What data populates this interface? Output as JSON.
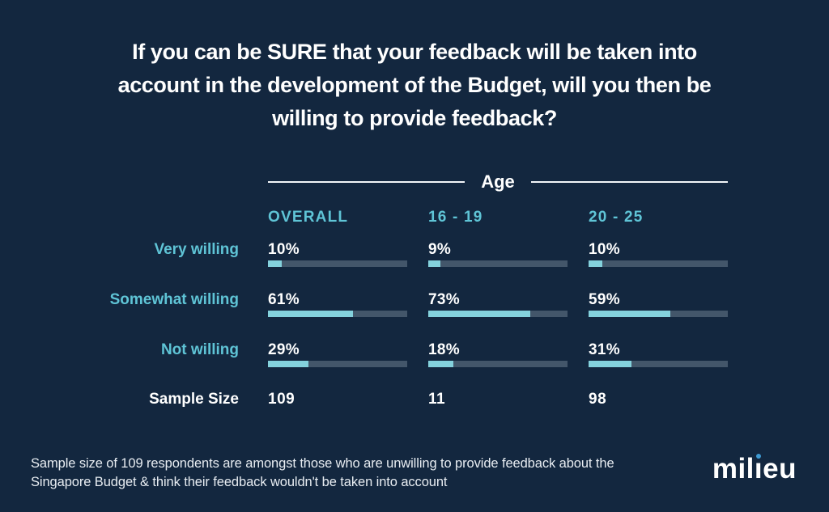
{
  "title": {
    "lines": [
      "If you can be SURE that your feedback will be taken into",
      "account in the development of the Budget, will you then be",
      "willing to provide feedback?"
    ]
  },
  "group_header": "Age",
  "columns": [
    "OVERALL",
    "16 - 19",
    "20 - 25"
  ],
  "rows": [
    {
      "label": "Very willing",
      "display": [
        "10%",
        "9%",
        "10%"
      ],
      "percents": [
        10,
        9,
        10
      ]
    },
    {
      "label": "Somewhat willing",
      "display": [
        "61%",
        "73%",
        "59%"
      ],
      "percents": [
        61,
        73,
        59
      ]
    },
    {
      "label": "Not willing",
      "display": [
        "29%",
        "18%",
        "31%"
      ],
      "percents": [
        29,
        18,
        31
      ]
    }
  ],
  "sample": {
    "label": "Sample Size",
    "values": [
      "109",
      "11",
      "98"
    ]
  },
  "footnote": "Sample size of 109 respondents are amongst those who are unwilling to provide feedback about the Singapore Budget & think their feedback wouldn't be taken into account",
  "logo": {
    "pre": "mil",
    "dotless_i": "ı",
    "post": "eu"
  },
  "colors": {
    "background": "#13273F",
    "accent_teal": "#5FC4D6",
    "bar_fill": "#84D2DD",
    "bar_track": "#43566A",
    "text_white": "#FFFFFF",
    "logo_dot_blue": "#3E9AD2"
  },
  "chart_data": {
    "type": "bar",
    "title": "If you can be SURE that your feedback will be taken into account in the development of the Budget, will you then be willing to provide feedback?",
    "group_label": "Age",
    "categories": [
      "Very willing",
      "Somewhat willing",
      "Not willing"
    ],
    "series": [
      {
        "name": "OVERALL",
        "values": [
          10,
          61,
          29
        ],
        "sample_size": 109
      },
      {
        "name": "16 - 19",
        "values": [
          9,
          73,
          18
        ],
        "sample_size": 11
      },
      {
        "name": "20 - 25",
        "values": [
          10,
          59,
          31
        ],
        "sample_size": 98
      }
    ],
    "unit": "%",
    "xlim": [
      0,
      100
    ],
    "legend_position": "column-headers",
    "grid": false,
    "note": "Sample size of 109 respondents are amongst those who are unwilling to provide feedback about the Singapore Budget & think their feedback wouldn't be taken into account"
  }
}
